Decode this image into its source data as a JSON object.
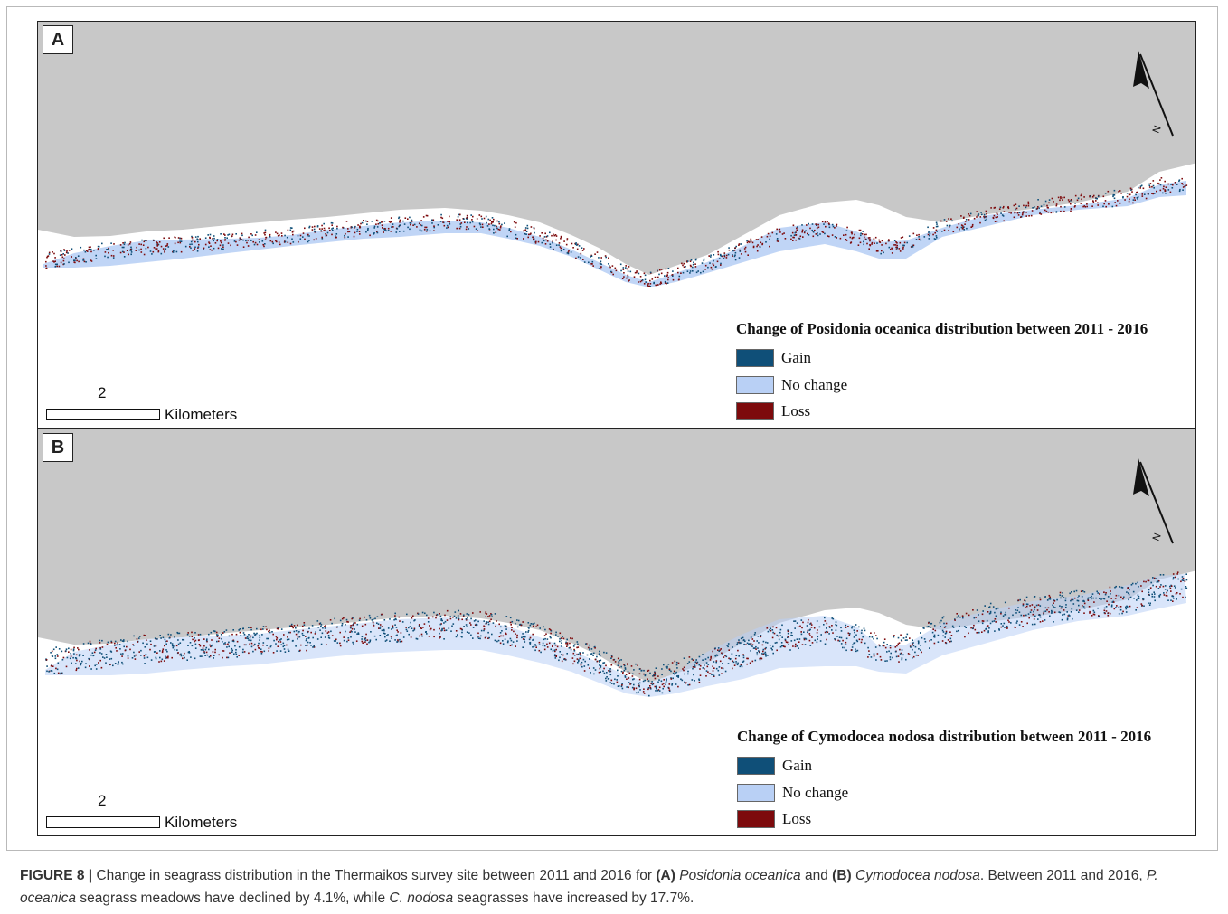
{
  "panels": [
    {
      "label": "A",
      "legend_title": "Change of Posidonia oceanica distribution between 2011 - 2016",
      "legend": [
        {
          "label": "Gain",
          "color": "#0f4f78"
        },
        {
          "label": "No change",
          "color": "#b9d0f5"
        },
        {
          "label": "Loss",
          "color": "#7d0a0c"
        }
      ],
      "scale_number": "2",
      "scale_unit": "Kilometers",
      "north_label": "N"
    },
    {
      "label": "B",
      "legend_title": "Change of  Cymodocea nodosa distribution between 2011 - 2016",
      "legend": [
        {
          "label": "Gain",
          "color": "#0f4f78"
        },
        {
          "label": "No change",
          "color": "#b9d0f5"
        },
        {
          "label": "Loss",
          "color": "#7d0a0c"
        }
      ],
      "scale_number": "2",
      "scale_unit": "Kilometers",
      "north_label": "N"
    }
  ],
  "colors": {
    "land": "#c8c8c8",
    "sea": "#ffffff"
  },
  "caption": {
    "figure_label": "FIGURE 8 |",
    "text1": " Change in seagrass distribution in the Thermaikos survey site between 2011 and 2016 for ",
    "a_label": "(A)",
    "a_species": "Posidonia oceanica",
    "text2": " and ",
    "b_label": "(B)",
    "b_species": "Cymodocea nodosa",
    "text3": ". Between 2011 and 2016, ",
    "p_abbrev": "P. oceanica",
    "text4": " seagrass meadows have declined by 4.1%, while ",
    "c_abbrev": "C. nodosa",
    "text5": " seagrasses have increased by 17.7%."
  }
}
